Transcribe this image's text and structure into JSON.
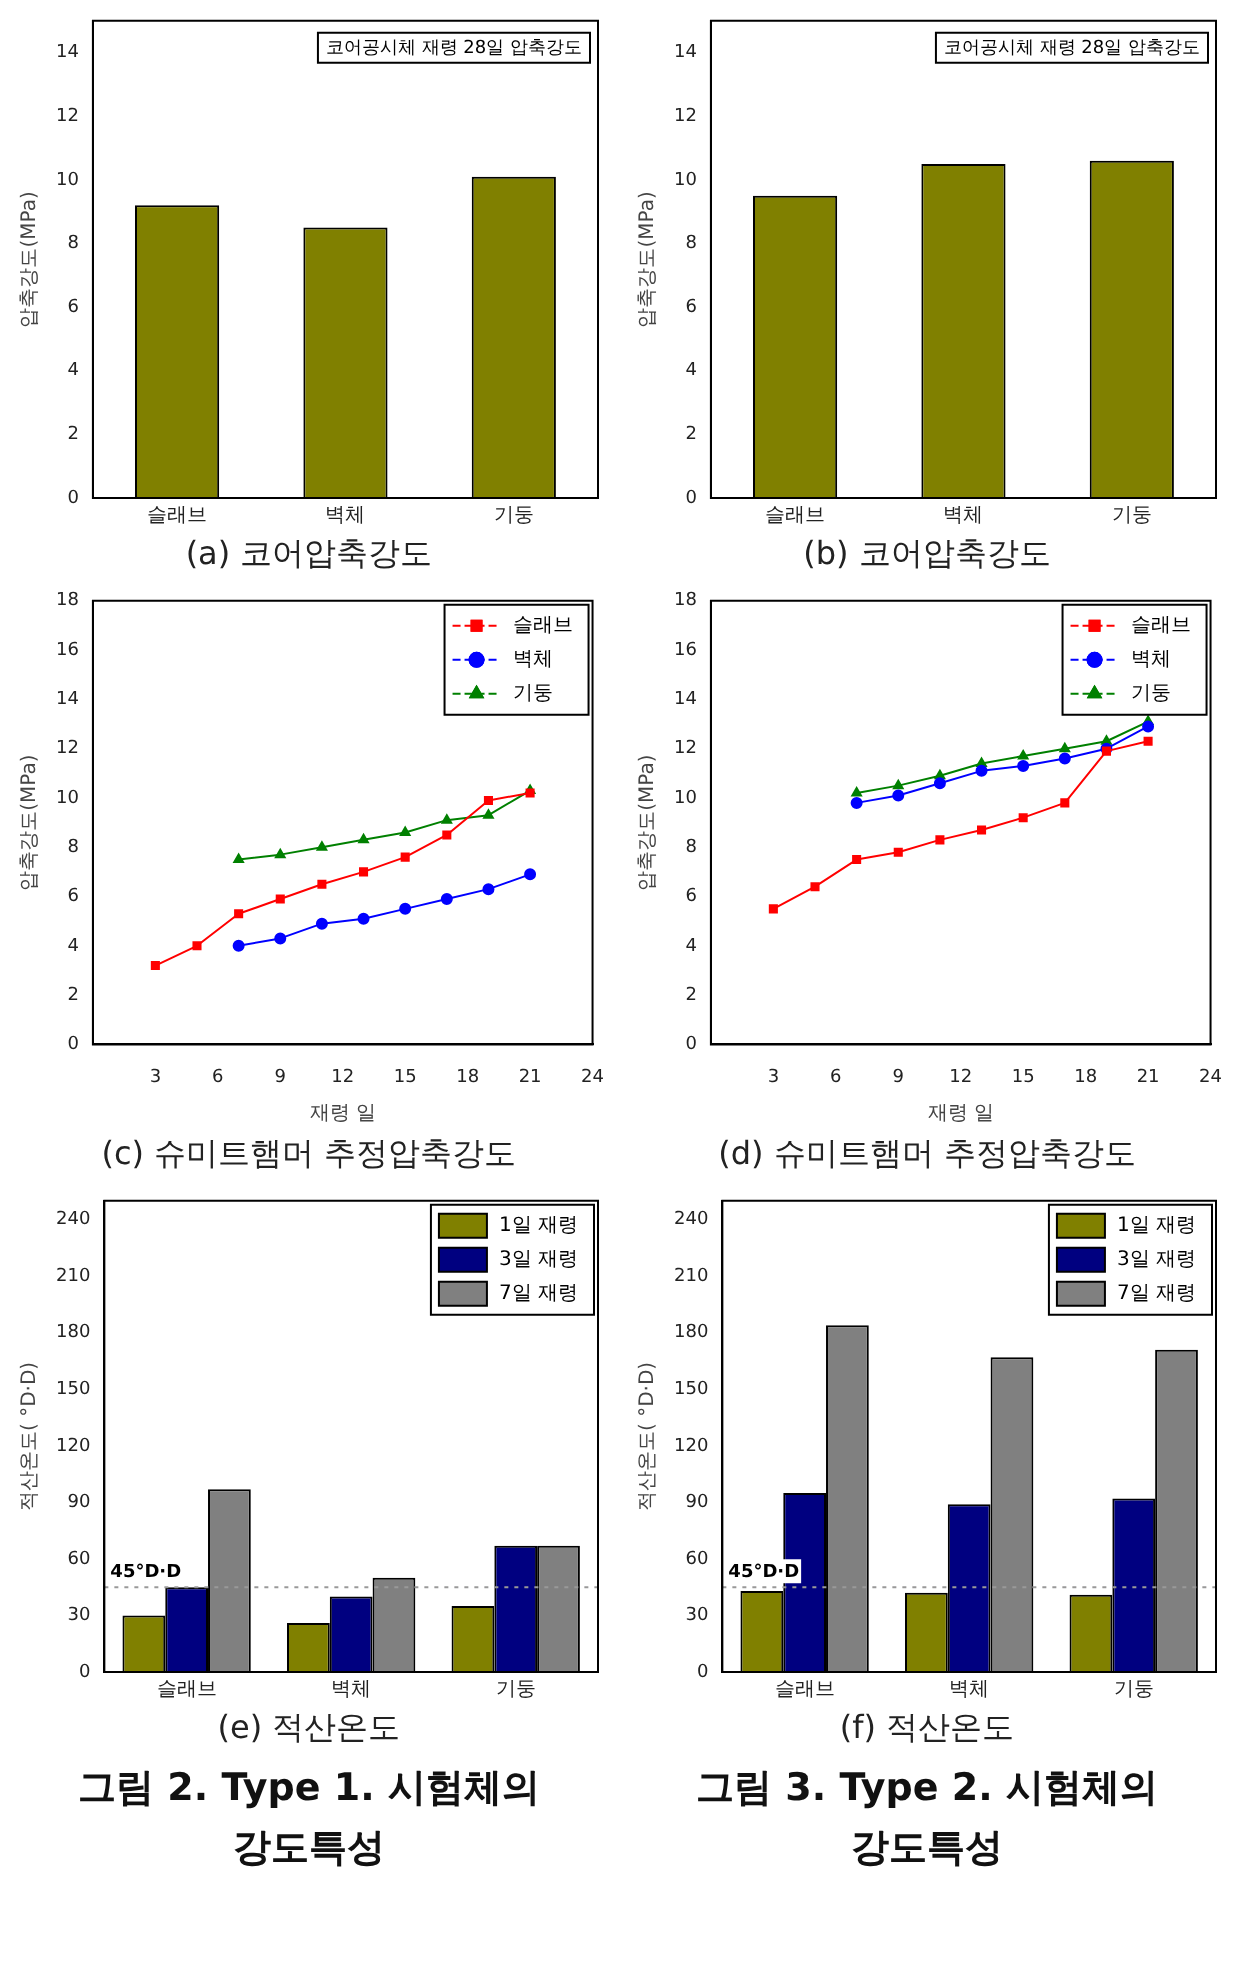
{
  "chart_data": [
    {
      "type": "bar",
      "title": "(a) 코어압축강도",
      "ylabel": "압축강도(MPa)",
      "annotations": [
        "코어공시체 재령 28일 압축강도"
      ],
      "categories": [
        "슬래브",
        "벽체",
        "기둥"
      ],
      "series": [
        {
          "color": "#808000",
          "values": [
            9.2,
            8.5,
            10.1
          ]
        }
      ],
      "ylim": [
        0,
        15
      ],
      "yticks": [
        0,
        2,
        4,
        6,
        8,
        10,
        12,
        14
      ],
      "grid": false,
      "legend": false
    },
    {
      "type": "bar",
      "title": "(b) 코어압축강도",
      "ylabel": "압축강도(MPa)",
      "annotations": [
        "코어공시체 재령 28일 압축강도"
      ],
      "categories": [
        "슬래브",
        "벽체",
        "기둥"
      ],
      "series": [
        {
          "color": "#808000",
          "values": [
            9.5,
            10.5,
            10.6
          ]
        }
      ],
      "ylim": [
        0,
        15
      ],
      "yticks": [
        0,
        2,
        4,
        6,
        8,
        10,
        12,
        14
      ],
      "grid": false,
      "legend": false
    },
    {
      "type": "line",
      "title": "(c) 슈미트햄머 추정압축강도",
      "xlabel": "재령 일",
      "ylabel": "압축강도(MPa)",
      "xlim": [
        0,
        24
      ],
      "xticks": [
        3,
        6,
        9,
        12,
        15,
        18,
        21,
        24
      ],
      "ylim": [
        0,
        18
      ],
      "yticks": [
        0,
        2,
        4,
        6,
        8,
        10,
        12,
        14,
        16,
        18
      ],
      "grid": false,
      "legend": "top right",
      "line_style": "solid",
      "series": [
        {
          "name": "슬래브",
          "color": "#ff0000",
          "marker": "square",
          "x": [
            3,
            5,
            7,
            9,
            11,
            13,
            15,
            17,
            19,
            21
          ],
          "values": [
            3.2,
            4.0,
            5.3,
            5.9,
            6.5,
            7.0,
            7.6,
            8.5,
            9.9,
            10.2
          ]
        },
        {
          "name": "벽체",
          "color": "#0000ff",
          "marker": "circle",
          "x": [
            7,
            9,
            11,
            13,
            15,
            17,
            19,
            21
          ],
          "values": [
            4.0,
            4.3,
            4.9,
            5.1,
            5.5,
            5.9,
            6.3,
            6.9
          ]
        },
        {
          "name": "기둥",
          "color": "#008000",
          "marker": "triangle",
          "x": [
            7,
            9,
            11,
            13,
            15,
            17,
            19,
            21
          ],
          "values": [
            7.5,
            7.7,
            8.0,
            8.3,
            8.6,
            9.1,
            9.3,
            10.3
          ]
        }
      ]
    },
    {
      "type": "line",
      "title": "(d) 슈미트햄머 추정압축강도",
      "xlabel": "재령 일",
      "ylabel": "압축강도(MPa)",
      "xlim": [
        0,
        24
      ],
      "xticks": [
        3,
        6,
        9,
        12,
        15,
        18,
        21,
        24
      ],
      "ylim": [
        0,
        18
      ],
      "yticks": [
        0,
        2,
        4,
        6,
        8,
        10,
        12,
        14,
        16,
        18
      ],
      "grid": false,
      "legend": "top right",
      "line_style": "solid",
      "series": [
        {
          "name": "슬래브",
          "color": "#ff0000",
          "marker": "square",
          "x": [
            3,
            5,
            7,
            9,
            11,
            13,
            15,
            17,
            19,
            21
          ],
          "values": [
            5.5,
            6.4,
            7.5,
            7.8,
            8.3,
            8.7,
            9.2,
            9.8,
            11.9,
            12.3
          ]
        },
        {
          "name": "벽체",
          "color": "#0000ff",
          "marker": "circle",
          "x": [
            7,
            9,
            11,
            13,
            15,
            17,
            19,
            21
          ],
          "values": [
            9.8,
            10.1,
            10.6,
            11.1,
            11.3,
            11.6,
            12.0,
            12.9
          ]
        },
        {
          "name": "기둥",
          "color": "#008000",
          "marker": "triangle",
          "x": [
            7,
            9,
            11,
            13,
            15,
            17,
            19,
            21
          ],
          "values": [
            10.2,
            10.5,
            10.9,
            11.4,
            11.7,
            12.0,
            12.3,
            13.1
          ]
        }
      ]
    },
    {
      "type": "bar",
      "title": "(e) 적산온도",
      "subtitle": "그림 2. Type 1. 시험체의 강도특성",
      "ylabel": "적산온도( °D·D)",
      "categories": [
        "슬래브",
        "벽체",
        "기둥"
      ],
      "ylim": [
        0,
        250
      ],
      "yticks": [
        0,
        30,
        60,
        90,
        120,
        150,
        180,
        210,
        240
      ],
      "grid": false,
      "legend": "top right",
      "series": [
        {
          "name": "1일 재령",
          "color": "#808000",
          "values": [
            30,
            26,
            35
          ]
        },
        {
          "name": "3일 재령",
          "color": "#000080",
          "values": [
            45,
            40,
            67
          ]
        },
        {
          "name": "7일 재령",
          "color": "#808080",
          "values": [
            97,
            50,
            67
          ]
        }
      ],
      "ref_lines": [
        {
          "axis": "y",
          "value": 45,
          "label": "45°D·D",
          "color": "#999999",
          "line_style": "dotted"
        }
      ]
    },
    {
      "type": "bar",
      "title": "(f) 적산온도",
      "subtitle": "그림 3. Type 2. 시험체의 강도특성",
      "ylabel": "적산온도( °D·D)",
      "categories": [
        "슬래브",
        "벽체",
        "기둥"
      ],
      "ylim": [
        0,
        250
      ],
      "yticks": [
        0,
        30,
        60,
        90,
        120,
        150,
        180,
        210,
        240
      ],
      "grid": false,
      "legend": "top right",
      "series": [
        {
          "name": "1일 재령",
          "color": "#808000",
          "values": [
            43,
            42,
            41
          ]
        },
        {
          "name": "3일 재령",
          "color": "#000080",
          "values": [
            95,
            89,
            92
          ]
        },
        {
          "name": "7일 재령",
          "color": "#808080",
          "values": [
            184,
            167,
            171
          ]
        }
      ],
      "ref_lines": [
        {
          "axis": "y",
          "value": 45,
          "label": "45°D·D",
          "color": "#999999",
          "line_style": "dotted"
        }
      ]
    }
  ]
}
